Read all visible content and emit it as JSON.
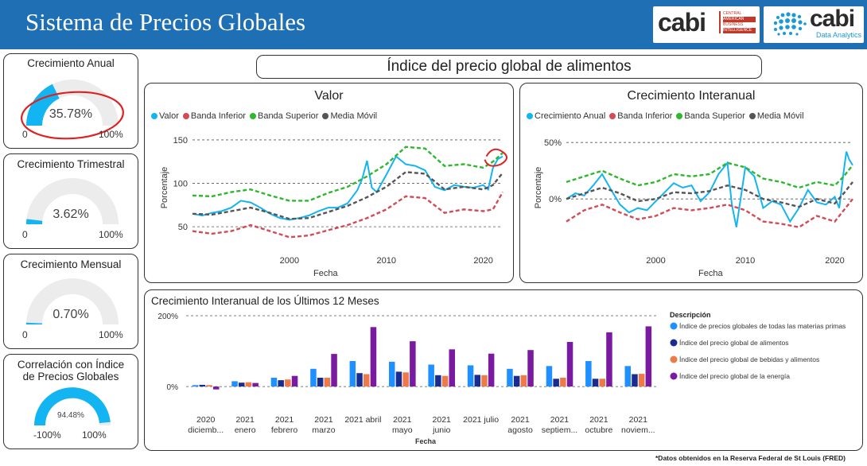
{
  "header": {
    "title": "Sistema de Precios Globales",
    "logo1": {
      "word": "cabi",
      "lines": [
        "CENTRAL",
        "AMERICAN",
        "BUSINESS",
        "INTELLIGENCE"
      ]
    },
    "logo2": {
      "word": "cabi",
      "subtitle": "Data Analytics"
    },
    "bg_color": "#1f6fb5"
  },
  "gauges": [
    {
      "title": "Crecimiento Anual",
      "value_label": "35.78%",
      "value": 35.78,
      "min": "0",
      "max": "100%",
      "color": "#12b5f2"
    },
    {
      "title": "Crecimiento Trimestral",
      "value_label": "3.62%",
      "value": 3.62,
      "min": "0",
      "max": "100%",
      "color": "#12b5f2"
    },
    {
      "title": "Crecimiento Mensual",
      "value_label": "0.70%",
      "value": 0.7,
      "min": "0",
      "max": "100%",
      "color": "#12b5f2"
    },
    {
      "title_line1": "Correlación con Índice",
      "title_line2": "de Precios Globales",
      "value_label": "94.48%",
      "value": 94.48,
      "min": "-100%",
      "max": "100%",
      "color": "#12b5f2"
    }
  ],
  "main_title": "Índice del precio global de alimentos",
  "footer": "*Datos obtenidos en la Reserva Federal de St Louis (FRED)",
  "chart_data": [
    {
      "type": "line",
      "title": "Valor",
      "xlabel": "Fecha",
      "ylabel": "Porcentaje",
      "xlim": [
        1990,
        2022
      ],
      "ylim": [
        30,
        160
      ],
      "yticks": [
        {
          "v": 50,
          "label": "50"
        },
        {
          "v": 100,
          "label": "100"
        },
        {
          "v": 150,
          "label": "150"
        }
      ],
      "xticks": [
        2000,
        2010,
        2020
      ],
      "grid": "dashed-horizontal",
      "legend": "top",
      "series": [
        {
          "name": "Valor",
          "color": "#12b5f2",
          "x": [
            1990,
            1991,
            1992,
            1993,
            1994,
            1995,
            1996,
            1997,
            1998,
            1999,
            2000,
            2001,
            2002,
            2003,
            2004,
            2005,
            2006,
            2007,
            2007.5,
            2008,
            2008.5,
            2009,
            2010,
            2011,
            2012,
            2013,
            2014,
            2015,
            2016,
            2017,
            2018,
            2019,
            2020,
            2020.5,
            2021,
            2021.5,
            2022
          ],
          "y": [
            65,
            63,
            66,
            68,
            72,
            80,
            78,
            72,
            65,
            60,
            58,
            60,
            63,
            68,
            72,
            72,
            77,
            92,
            105,
            126,
            95,
            90,
            110,
            131,
            122,
            120,
            115,
            96,
            92,
            98,
            96,
            95,
            98,
            93,
            118,
            128,
            131
          ]
        },
        {
          "name": "Banda Inferior",
          "color": "#d24b55",
          "x": [
            1990,
            1992,
            1994,
            1996,
            1998,
            2000,
            2002,
            2004,
            2006,
            2008,
            2010,
            2012,
            2014,
            2016,
            2018,
            2020,
            2021,
            2022
          ],
          "y": [
            45,
            42,
            45,
            52,
            45,
            38,
            40,
            46,
            52,
            60,
            70,
            85,
            83,
            66,
            70,
            68,
            70,
            90
          ]
        },
        {
          "name": "Banda Superior",
          "color": "#2db82d",
          "x": [
            1990,
            1992,
            1994,
            1996,
            1998,
            2000,
            2002,
            2004,
            2006,
            2008,
            2010,
            2012,
            2014,
            2016,
            2018,
            2020,
            2021,
            2022
          ],
          "y": [
            86,
            85,
            90,
            93,
            86,
            80,
            80,
            89,
            96,
            108,
            122,
            142,
            140,
            120,
            122,
            118,
            125,
            135
          ]
        },
        {
          "name": "Media Móvil",
          "color": "#555555",
          "x": [
            1990,
            1992,
            1994,
            1996,
            1998,
            2000,
            2002,
            2004,
            2006,
            2008,
            2010,
            2012,
            2014,
            2016,
            2018,
            2020,
            2021,
            2022
          ],
          "y": [
            65,
            64,
            68,
            72,
            66,
            59,
            60,
            67,
            74,
            84,
            96,
            113,
            111,
            93,
            96,
            93,
            98,
            112
          ]
        }
      ]
    },
    {
      "type": "line",
      "title": "Crecimiento Interanual",
      "xlabel": "Fecha",
      "ylabel": "Porcentaje",
      "xlim": [
        1990,
        2022
      ],
      "ylim": [
        -40,
        60
      ],
      "yticks": [
        {
          "v": 0,
          "label": "0%"
        },
        {
          "v": 50,
          "label": "50%"
        }
      ],
      "xticks": [
        2000,
        2010,
        2020
      ],
      "grid": "dashed-horizontal",
      "legend": "top",
      "series": [
        {
          "name": "Crecimiento Anual",
          "color": "#12b5f2",
          "x": [
            1990,
            1991,
            1992,
            1993,
            1994,
            1995,
            1996,
            1997,
            1998,
            1999,
            2000,
            2001,
            2002,
            2003,
            2004,
            2005,
            2006,
            2007,
            2008,
            2008.5,
            2009,
            2010,
            2011,
            2012,
            2013,
            2014,
            2015,
            2016,
            2017,
            2018,
            2019,
            2020,
            2020.5,
            2021,
            2021.3,
            2021.6,
            2022
          ],
          "y": [
            0,
            5,
            3,
            12,
            22,
            8,
            -5,
            -12,
            -8,
            -10,
            -2,
            6,
            14,
            10,
            12,
            -2,
            6,
            22,
            32,
            -5,
            -25,
            28,
            20,
            -8,
            -2,
            -5,
            -20,
            -8,
            8,
            -3,
            -5,
            2,
            -8,
            25,
            42,
            35,
            30
          ]
        },
        {
          "name": "Banda Inferior",
          "color": "#d24b55",
          "x": [
            1990,
            1992,
            1994,
            1996,
            1998,
            2000,
            2002,
            2004,
            2006,
            2008,
            2010,
            2012,
            2014,
            2016,
            2018,
            2020,
            2021,
            2022
          ],
          "y": [
            -20,
            -10,
            -5,
            -12,
            -18,
            -15,
            -8,
            -10,
            -8,
            -5,
            -10,
            -20,
            -22,
            -25,
            -15,
            -20,
            -10,
            0
          ]
        },
        {
          "name": "Banda Superior",
          "color": "#2db82d",
          "x": [
            1990,
            1992,
            1994,
            1996,
            1998,
            2000,
            2002,
            2004,
            2006,
            2008,
            2010,
            2012,
            2014,
            2016,
            2018,
            2020,
            2021,
            2022
          ],
          "y": [
            15,
            20,
            25,
            18,
            12,
            15,
            22,
            20,
            22,
            32,
            28,
            18,
            15,
            10,
            15,
            12,
            20,
            30
          ]
        },
        {
          "name": "Media Móvil",
          "color": "#555555",
          "x": [
            1990,
            1992,
            1994,
            1996,
            1998,
            2000,
            2002,
            2004,
            2006,
            2008,
            2010,
            2012,
            2014,
            2016,
            2018,
            2020,
            2021,
            2022
          ],
          "y": [
            0,
            5,
            10,
            5,
            -2,
            0,
            6,
            5,
            7,
            12,
            8,
            0,
            -3,
            -7,
            0,
            -4,
            5,
            15
          ]
        }
      ]
    },
    {
      "type": "bar",
      "title": "Crecimiento Interanual de los Últimos 12 Meses",
      "xlabel": "Fecha",
      "ylabel": "",
      "ylim": [
        -20,
        200
      ],
      "yticks": [
        {
          "v": 0,
          "label": "0%"
        },
        {
          "v": 200,
          "label": "200%"
        }
      ],
      "grid": "dashed-horizontal",
      "legend_title": "Descripción",
      "legend": "right",
      "categories": [
        [
          "2020",
          "diciemb..."
        ],
        [
          "2021",
          "enero"
        ],
        [
          "2021",
          "febrero"
        ],
        [
          "2021",
          "marzo"
        ],
        [
          "2021 abril"
        ],
        [
          "2021",
          "mayo"
        ],
        [
          "2021",
          "junio"
        ],
        [
          "2021 julio"
        ],
        [
          "2021",
          "agosto"
        ],
        [
          "2021",
          "septiem..."
        ],
        [
          "2021",
          "octubre"
        ],
        [
          "2021",
          "noviem..."
        ]
      ],
      "series": [
        {
          "name": "Índice de precios globales de todas las materias primas",
          "color": "#1e90ff",
          "values": [
            4,
            15,
            25,
            50,
            72,
            70,
            62,
            60,
            50,
            58,
            72,
            58
          ]
        },
        {
          "name": "Índice del precio global de alimentos",
          "color": "#1a2c8f",
          "values": [
            5,
            11,
            18,
            25,
            38,
            42,
            32,
            33,
            30,
            22,
            22,
            35
          ]
        },
        {
          "name": "Índice del precio global de bebidas y alimentos",
          "color": "#ee7a4a",
          "values": [
            4,
            12,
            20,
            25,
            35,
            40,
            30,
            32,
            32,
            25,
            22,
            36
          ]
        },
        {
          "name": "Índice del precio global de la energía",
          "color": "#7a1aa0",
          "values": [
            -8,
            10,
            30,
            92,
            168,
            128,
            105,
            93,
            103,
            126,
            153,
            170
          ]
        }
      ]
    }
  ]
}
